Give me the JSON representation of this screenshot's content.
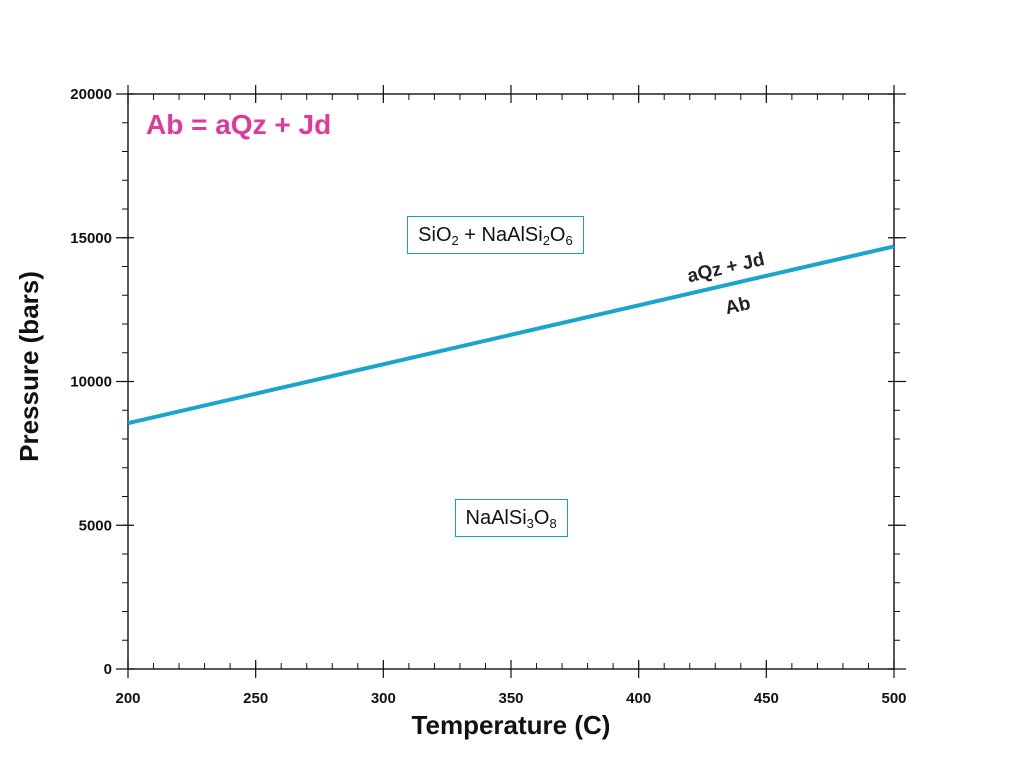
{
  "chart_data": {
    "type": "line",
    "title": "Ab = aQz + Jd",
    "xlabel": "Temperature (C)",
    "ylabel": "Pressure (bars)",
    "xlim": [
      200,
      500
    ],
    "ylim": [
      0,
      20000
    ],
    "x_ticks": [
      200,
      250,
      300,
      350,
      400,
      450,
      500
    ],
    "x_tick_labels": [
      "200",
      "250",
      "300",
      "350",
      "400",
      "450",
      "500"
    ],
    "y_ticks": [
      0,
      5000,
      10000,
      15000,
      20000
    ],
    "y_tick_labels": [
      "0",
      "5000",
      "10000",
      "15000",
      "20000"
    ],
    "x_minor_step": 10,
    "y_minor_step": 1000,
    "grid": false,
    "series": [
      {
        "x": [
          200,
          500
        ],
        "y": [
          8550,
          14700
        ],
        "color": "#1ba6c9"
      }
    ],
    "line_labels": {
      "above": "aQz + Jd",
      "below": "Ab",
      "at_x": 437
    },
    "fields": [
      {
        "parts": [
          [
            "SiO",
            ""
          ],
          [
            "2",
            "sub"
          ],
          [
            " + NaAlSi",
            ""
          ],
          [
            "2",
            "sub"
          ],
          [
            "O",
            ""
          ],
          [
            "6",
            "sub"
          ]
        ],
        "x": 344,
        "y": 15100
      },
      {
        "parts": [
          [
            "NaAlSi",
            ""
          ],
          [
            "3",
            "sub"
          ],
          [
            "O",
            ""
          ],
          [
            "8",
            "sub"
          ]
        ],
        "x": 350,
        "y": 5250
      }
    ],
    "colors": {
      "title": "#e0399a",
      "line": "#1ba6c9",
      "box_border": "#1fa2b8",
      "axis": "#111111"
    }
  }
}
